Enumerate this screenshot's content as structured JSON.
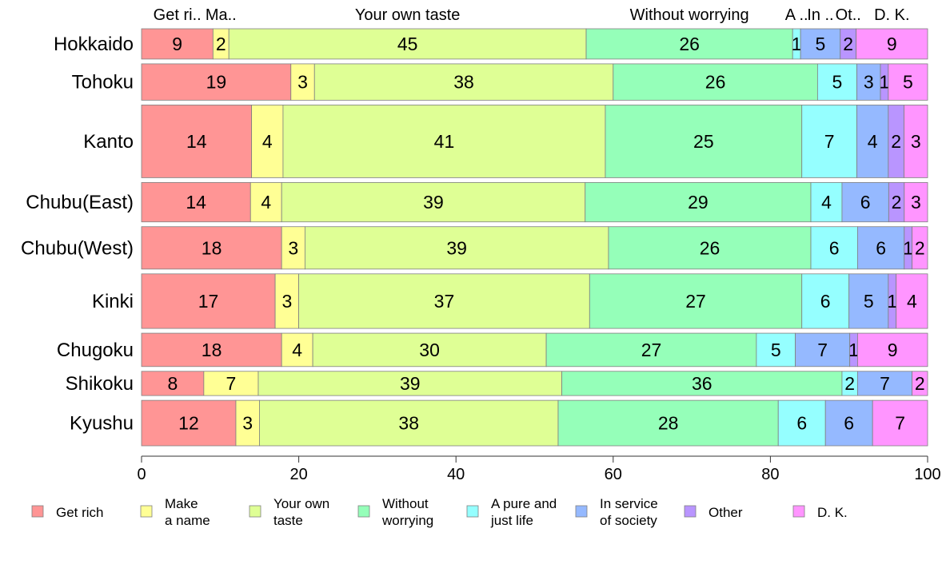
{
  "chart_data": {
    "type": "bar",
    "orientation": "horizontal",
    "stacked": "percent",
    "categories": [
      "Hokkaido",
      "Tohoku",
      "Kanto",
      "Chubu(East)",
      "Chubu(West)",
      "Kinki",
      "Chugoku",
      "Shikoku",
      "Kyushu"
    ],
    "category_weights": [
      1,
      1.2,
      2.4,
      1.3,
      1.4,
      1.8,
      1.1,
      0.8,
      1.5
    ],
    "series": [
      {
        "name": "Get rich",
        "legend": [
          "Get rich"
        ],
        "top_label": "Get ri..",
        "color": "#FF9595",
        "values": [
          9,
          19,
          14,
          14,
          18,
          17,
          18,
          8,
          12
        ]
      },
      {
        "name": "Make a name",
        "legend": [
          "Make",
          "a name"
        ],
        "top_label": "Ma..",
        "color": "#FFFF95",
        "values": [
          2,
          3,
          4,
          4,
          3,
          3,
          4,
          7,
          3
        ]
      },
      {
        "name": "Your own taste",
        "legend": [
          "Your own",
          "taste"
        ],
        "top_label": "Your own taste",
        "color": "#DFFF95",
        "values": [
          45,
          38,
          41,
          39,
          39,
          37,
          30,
          39,
          38
        ]
      },
      {
        "name": "Without worrying",
        "legend": [
          "Without",
          "worrying"
        ],
        "top_label": "Without worrying",
        "color": "#95FFB9",
        "values": [
          26,
          26,
          25,
          29,
          26,
          27,
          27,
          36,
          28
        ]
      },
      {
        "name": "A pure and just life",
        "legend": [
          "A pure and",
          "just life"
        ],
        "top_label": "A ..",
        "color": "#95FFFF",
        "values": [
          1,
          5,
          7,
          4,
          6,
          6,
          5,
          2,
          6
        ]
      },
      {
        "name": "In service of society",
        "legend": [
          "In service",
          "of society"
        ],
        "top_label": "In ..",
        "color": "#95B9FF",
        "values": [
          5,
          3,
          4,
          6,
          6,
          5,
          7,
          7,
          6
        ]
      },
      {
        "name": "Other",
        "legend": [
          "Other"
        ],
        "top_label": "Ot..",
        "color": "#B995FF",
        "values": [
          2,
          1,
          2,
          2,
          1,
          1,
          1,
          0,
          0
        ]
      },
      {
        "name": "D. K.",
        "legend": [
          "D. K."
        ],
        "top_label": "D. K.",
        "color": "#FF95FF",
        "values": [
          9,
          5,
          3,
          3,
          2,
          4,
          9,
          2,
          7
        ]
      }
    ],
    "xlim": [
      0,
      100
    ],
    "xticks": [
      0,
      20,
      40,
      60,
      80,
      100
    ],
    "xlabel": "",
    "ylabel": "",
    "title": "",
    "grid": false,
    "legend_position": "bottom"
  }
}
